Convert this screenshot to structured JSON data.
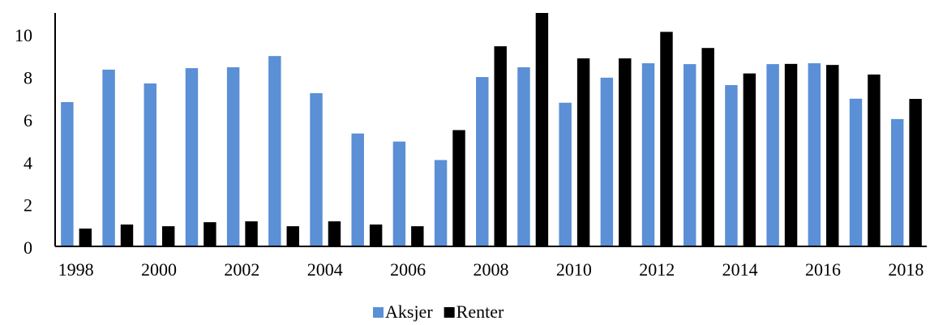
{
  "chart_data": {
    "type": "bar",
    "categories": [
      "1998",
      null,
      "2000",
      null,
      "2002",
      null,
      "2004",
      null,
      "2006",
      null,
      "2008",
      null,
      "2010",
      null,
      "2012",
      null,
      "2014",
      null,
      "2016",
      null,
      "2018"
    ],
    "series": [
      {
        "name": "Aksjer",
        "color": "#5b8fd6",
        "values": [
          6.8,
          8.33,
          7.68,
          8.4,
          8.44,
          8.97,
          7.22,
          5.32,
          4.94,
          4.07,
          7.98,
          8.44,
          6.77,
          7.95,
          8.63,
          8.59,
          7.6,
          8.59,
          8.63,
          6.96,
          6.0
        ]
      },
      {
        "name": "Renter",
        "color": "#000000",
        "values": [
          0.84,
          1.03,
          0.95,
          1.14,
          1.18,
          0.95,
          1.18,
          1.03,
          0.95,
          5.48,
          9.43,
          11,
          8.86,
          8.86,
          10.11,
          9.35,
          8.15,
          8.6,
          8.55,
          8.1,
          6.95
        ]
      }
    ],
    "ylim": [
      0,
      11
    ],
    "yticks": [
      0,
      2,
      4,
      6,
      8,
      10
    ],
    "grid": false,
    "legend": "bottom"
  }
}
